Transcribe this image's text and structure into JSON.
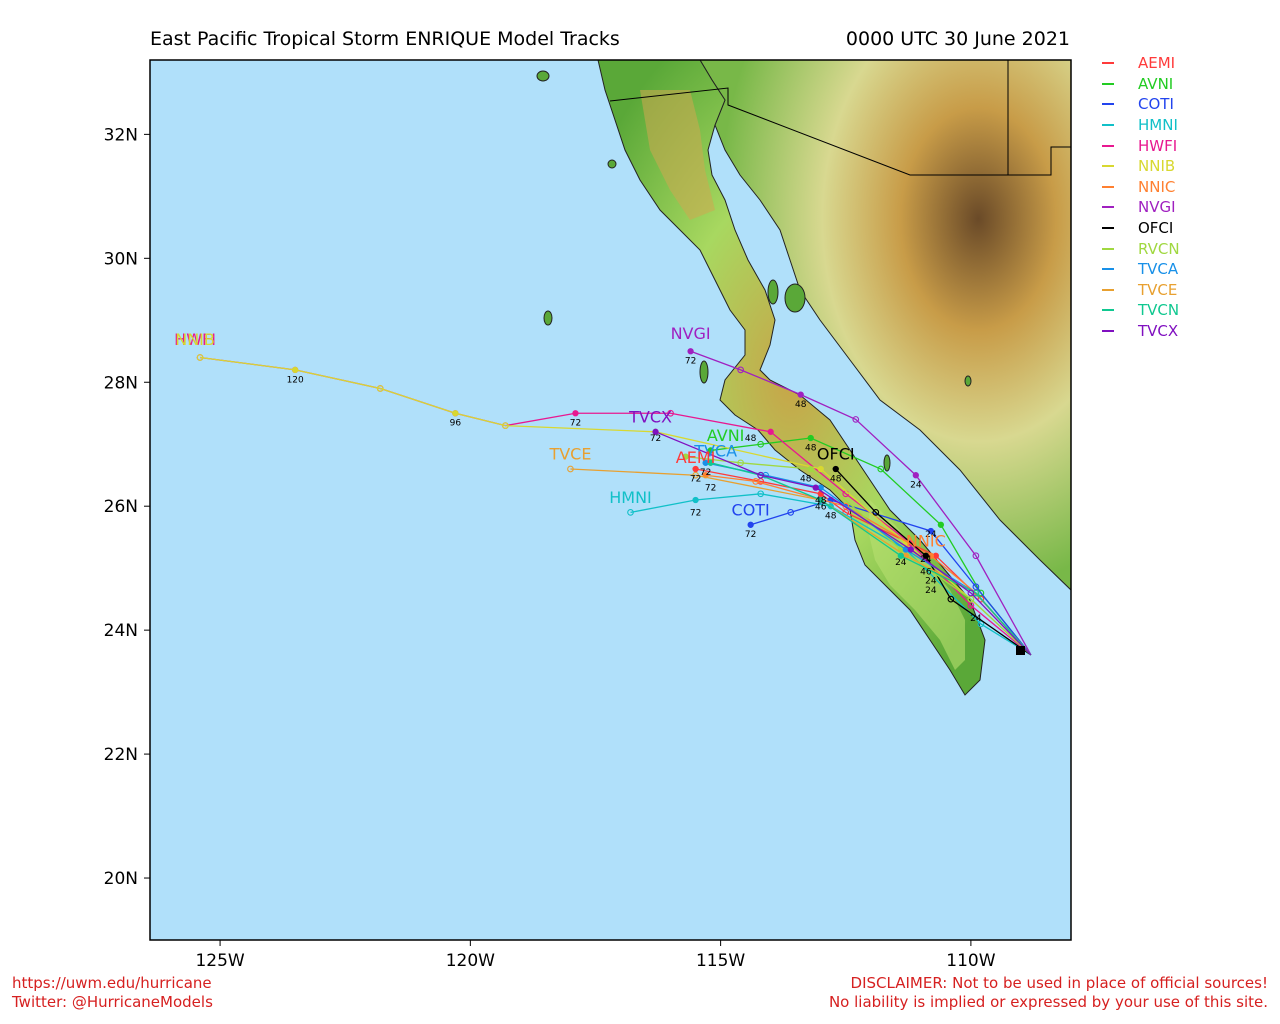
{
  "title": "East Pacific Tropical Storm ENRIQUE Model Tracks",
  "datetime": "0000 UTC 30 June 2021",
  "axes": {
    "lon_ticks": [
      "125W",
      "120W",
      "115W",
      "110W"
    ],
    "lat_ticks": [
      "32N",
      "30N",
      "28N",
      "26N",
      "24N",
      "22N",
      "20N"
    ]
  },
  "legend": [
    {
      "name": "AEMI",
      "color": "#ff3a3a"
    },
    {
      "name": "AVNI",
      "color": "#22cc22"
    },
    {
      "name": "COTI",
      "color": "#2244ee"
    },
    {
      "name": "HMNI",
      "color": "#11c0c8"
    },
    {
      "name": "HWFI",
      "color": "#e81890"
    },
    {
      "name": "NNIB",
      "color": "#d8d830"
    },
    {
      "name": "NNIC",
      "color": "#ff8030"
    },
    {
      "name": "NVGI",
      "color": "#a020c0"
    },
    {
      "name": "OFCI",
      "color": "#000000"
    },
    {
      "name": "RVCN",
      "color": "#a0d840"
    },
    {
      "name": "TVCA",
      "color": "#1890e8"
    },
    {
      "name": "TVCE",
      "color": "#e8a030"
    },
    {
      "name": "TVCN",
      "color": "#10c890"
    },
    {
      "name": "TVCX",
      "color": "#8010c0"
    }
  ],
  "colors": {
    "ocean": "#b0e0fa",
    "land_low": "#4e9a36",
    "land_mid": "#a8d860",
    "land_high": "#c8a040",
    "land_peak": "#70502a"
  },
  "chart_data": {
    "type": "map",
    "storm_start": {
      "lon": -108.8,
      "lat": 23.6
    },
    "tracks": [
      {
        "model": "AEMI",
        "points": [
          {
            "lon": -109.8,
            "lat": 24.5,
            "hour": 12
          },
          {
            "lon": -110.7,
            "lat": 25.2,
            "hour": 24
          },
          {
            "lon": -112.5,
            "lat": 25.9,
            "hour": 36
          },
          {
            "lon": -113.0,
            "lat": 26.2,
            "hour": 48
          },
          {
            "lon": -114.2,
            "lat": 26.4,
            "hour": 60
          },
          {
            "lon": -115.5,
            "lat": 26.6,
            "hour": 72
          }
        ]
      },
      {
        "model": "AVNI",
        "points": [
          {
            "lon": -109.8,
            "lat": 24.6,
            "hour": 12
          },
          {
            "lon": -110.6,
            "lat": 25.7,
            "hour": 24
          },
          {
            "lon": -111.8,
            "lat": 26.6,
            "hour": 36
          },
          {
            "lon": -113.2,
            "lat": 27.1,
            "hour": 48
          },
          {
            "lon": -114.2,
            "lat": 27.0,
            "hour": 60
          },
          {
            "lon": -115.2,
            "lat": 26.9,
            "hour": 72
          }
        ]
      },
      {
        "model": "COTI",
        "points": [
          {
            "lon": -109.9,
            "lat": 24.7,
            "hour": 12
          },
          {
            "lon": -110.8,
            "lat": 25.6,
            "hour": 24
          },
          {
            "lon": -112.8,
            "lat": 26.1,
            "hour": 48
          },
          {
            "lon": -113.6,
            "lat": 25.9,
            "hour": 60
          },
          {
            "lon": -114.4,
            "lat": 25.7,
            "hour": 72
          }
        ]
      },
      {
        "model": "HMNI",
        "points": [
          {
            "lon": -109.8,
            "lat": 24.1,
            "hour": 12
          },
          {
            "lon": -111.3,
            "lat": 25.3,
            "hour": 24
          },
          {
            "lon": -112.8,
            "lat": 26.0,
            "hour": 48
          },
          {
            "lon": -114.2,
            "lat": 26.2,
            "hour": 60
          },
          {
            "lon": -115.5,
            "lat": 26.1,
            "hour": 72
          },
          {
            "lon": -116.8,
            "lat": 25.9,
            "hour": 84
          }
        ]
      },
      {
        "model": "HWFI",
        "points": [
          {
            "lon": -110.0,
            "lat": 24.4,
            "hour": 12
          },
          {
            "lon": -111.2,
            "lat": 25.4,
            "hour": 24
          },
          {
            "lon": -112.5,
            "lat": 26.2,
            "hour": 36
          },
          {
            "lon": -114.0,
            "lat": 27.2,
            "hour": 48
          },
          {
            "lon": -116.0,
            "lat": 27.5,
            "hour": 60
          },
          {
            "lon": -117.9,
            "lat": 27.5,
            "hour": 72
          },
          {
            "lon": -119.3,
            "lat": 27.3,
            "hour": 84
          },
          {
            "lon": -120.3,
            "lat": 27.5,
            "hour": 96
          },
          {
            "lon": -121.8,
            "lat": 27.9,
            "hour": 108
          },
          {
            "lon": -123.5,
            "lat": 28.2,
            "hour": 120
          },
          {
            "lon": -125.4,
            "lat": 28.4,
            "hour": 132
          }
        ]
      },
      {
        "model": "NNIB",
        "points": [
          {
            "lon": -110.0,
            "lat": 24.5,
            "hour": 12
          },
          {
            "lon": -111.3,
            "lat": 25.4,
            "hour": 24
          },
          {
            "lon": -113.0,
            "lat": 26.6,
            "hour": 48
          },
          {
            "lon": -116.3,
            "lat": 27.2,
            "hour": 72
          },
          {
            "lon": -119.3,
            "lat": 27.3,
            "hour": 84
          },
          {
            "lon": -120.3,
            "lat": 27.5,
            "hour": 96
          },
          {
            "lon": -121.8,
            "lat": 27.9,
            "hour": 108
          },
          {
            "lon": -123.5,
            "lat": 28.2,
            "hour": 120
          },
          {
            "lon": -125.4,
            "lat": 28.4,
            "hour": 132
          }
        ]
      },
      {
        "model": "NNIC",
        "points": [
          {
            "lon": -109.9,
            "lat": 24.6,
            "hour": 12
          },
          {
            "lon": -110.8,
            "lat": 25.2,
            "hour": 24
          },
          {
            "lon": -112.5,
            "lat": 26.0,
            "hour": 36
          },
          {
            "lon": -114.3,
            "lat": 26.4,
            "hour": 60
          },
          {
            "lon": -115.3,
            "lat": 26.5,
            "hour": 72
          }
        ]
      },
      {
        "model": "NVGI",
        "points": [
          {
            "lon": -109.9,
            "lat": 25.2,
            "hour": 12
          },
          {
            "lon": -111.1,
            "lat": 26.5,
            "hour": 24
          },
          {
            "lon": -112.3,
            "lat": 27.4,
            "hour": 36
          },
          {
            "lon": -113.4,
            "lat": 27.8,
            "hour": 48
          },
          {
            "lon": -114.6,
            "lat": 28.2,
            "hour": 60
          },
          {
            "lon": -115.6,
            "lat": 28.5,
            "hour": 72
          }
        ]
      },
      {
        "model": "OFCI",
        "points": [
          {
            "lon": -110.4,
            "lat": 24.5,
            "hour": 12
          },
          {
            "lon": -110.9,
            "lat": 25.2,
            "hour": 24
          },
          {
            "lon": -111.9,
            "lat": 25.9,
            "hour": 36
          },
          {
            "lon": -112.7,
            "lat": 26.6,
            "hour": 48
          }
        ]
      },
      {
        "model": "RVCN",
        "points": [
          {
            "lon": -110.0,
            "lat": 24.5,
            "hour": 12
          },
          {
            "lon": -111.4,
            "lat": 25.3,
            "hour": 24
          },
          {
            "lon": -113.2,
            "lat": 26.6,
            "hour": 48
          },
          {
            "lon": -114.6,
            "lat": 26.7,
            "hour": 60
          },
          {
            "lon": -115.7,
            "lat": 26.8,
            "hour": 72
          }
        ]
      },
      {
        "model": "TVCA",
        "points": [
          {
            "lon": -109.9,
            "lat": 24.6,
            "hour": 12
          },
          {
            "lon": -111.3,
            "lat": 25.3,
            "hour": 24
          },
          {
            "lon": -113.0,
            "lat": 26.3,
            "hour": 48
          },
          {
            "lon": -114.1,
            "lat": 26.5,
            "hour": 60
          },
          {
            "lon": -115.3,
            "lat": 26.7,
            "hour": 72
          }
        ]
      },
      {
        "model": "TVCE",
        "points": [
          {
            "lon": -109.9,
            "lat": 24.6,
            "hour": 12
          },
          {
            "lon": -111.3,
            "lat": 25.2,
            "hour": 24
          },
          {
            "lon": -113.0,
            "lat": 26.1,
            "hour": 48
          },
          {
            "lon": -115.5,
            "lat": 26.5,
            "hour": 66
          },
          {
            "lon": -118.0,
            "lat": 26.6,
            "hour": 84
          }
        ]
      },
      {
        "model": "TVCN",
        "points": [
          {
            "lon": -109.9,
            "lat": 24.6,
            "hour": 12
          },
          {
            "lon": -111.4,
            "lat": 25.2,
            "hour": 24
          },
          {
            "lon": -113.0,
            "lat": 26.1,
            "hour": 48
          },
          {
            "lon": -114.2,
            "lat": 26.5,
            "hour": 60
          },
          {
            "lon": -115.2,
            "lat": 26.7,
            "hour": 72
          }
        ]
      },
      {
        "model": "TVCX",
        "points": [
          {
            "lon": -110.0,
            "lat": 24.6,
            "hour": 12
          },
          {
            "lon": -111.2,
            "lat": 25.3,
            "hour": 24
          },
          {
            "lon": -113.1,
            "lat": 26.3,
            "hour": 48
          },
          {
            "lon": -114.2,
            "lat": 26.5,
            "hour": 60
          },
          {
            "lon": -116.3,
            "lat": 27.2,
            "hour": 72
          }
        ]
      }
    ],
    "track_labels": [
      {
        "model": "NVGI",
        "lon": -115.6,
        "lat": 28.7
      },
      {
        "model": "HWFI",
        "lon": -125.5,
        "lat": 28.6
      },
      {
        "model": "NNIB",
        "lon": -125.5,
        "lat": 28.6
      },
      {
        "model": "TVCX",
        "lon": -116.4,
        "lat": 27.35
      },
      {
        "model": "AVNI",
        "lon": -114.9,
        "lat": 27.05
      },
      {
        "model": "TVCA",
        "lon": -115.1,
        "lat": 26.8
      },
      {
        "model": "TVCE",
        "lon": -118.0,
        "lat": 26.75
      },
      {
        "model": "AEMI",
        "lon": -115.5,
        "lat": 26.7
      },
      {
        "model": "OFCI",
        "lon": -112.7,
        "lat": 26.75
      },
      {
        "model": "HMNI",
        "lon": -116.8,
        "lat": 26.05
      },
      {
        "model": "COTI",
        "lon": -114.4,
        "lat": 25.85
      },
      {
        "model": "NNIC",
        "lon": -110.9,
        "lat": 25.35
      }
    ],
    "hour_labels": [
      {
        "text": "120",
        "lon": -123.5,
        "lat": 28.0
      },
      {
        "text": "96",
        "lon": -120.3,
        "lat": 27.3
      },
      {
        "text": "72",
        "lon": -117.9,
        "lat": 27.3
      },
      {
        "text": "72",
        "lon": -115.6,
        "lat": 28.3
      },
      {
        "text": "72",
        "lon": -116.3,
        "lat": 27.05
      },
      {
        "text": "48",
        "lon": -114.4,
        "lat": 27.05
      },
      {
        "text": "48",
        "lon": -113.4,
        "lat": 27.6
      },
      {
        "text": "48",
        "lon": -113.2,
        "lat": 26.9
      },
      {
        "text": "48",
        "lon": -113.3,
        "lat": 26.4
      },
      {
        "text": "48",
        "lon": -112.7,
        "lat": 26.4
      },
      {
        "text": "48",
        "lon": -113.0,
        "lat": 26.05
      },
      {
        "text": "46",
        "lon": -113.0,
        "lat": 25.95
      },
      {
        "text": "48",
        "lon": -112.8,
        "lat": 25.8
      },
      {
        "text": "72",
        "lon": -115.5,
        "lat": 26.4
      },
      {
        "text": "72",
        "lon": -115.3,
        "lat": 26.5
      },
      {
        "text": "72",
        "lon": -115.2,
        "lat": 26.25
      },
      {
        "text": "72",
        "lon": -115.5,
        "lat": 25.85
      },
      {
        "text": "72",
        "lon": -114.4,
        "lat": 25.5
      },
      {
        "text": "24",
        "lon": -111.1,
        "lat": 26.3
      },
      {
        "text": "24",
        "lon": -110.8,
        "lat": 25.5
      },
      {
        "text": "24",
        "lon": -110.9,
        "lat": 25.1
      },
      {
        "text": "24",
        "lon": -111.4,
        "lat": 25.05
      },
      {
        "text": "24",
        "lon": -110.8,
        "lat": 24.75
      },
      {
        "text": "24",
        "lon": -110.8,
        "lat": 24.6
      },
      {
        "text": "24",
        "lon": -109.9,
        "lat": 24.15
      },
      {
        "text": "46",
        "lon": -110.9,
        "lat": 24.9
      }
    ],
    "lon_range": [
      -126.4,
      -108.0
    ],
    "lat_range": [
      19.0,
      33.2
    ]
  },
  "footer": {
    "url": "https://uwm.edu/hurricane",
    "twitter": "Twitter: @HurricaneModels",
    "disclaimer1": "DISCLAIMER: Not to be used in place of official sources!",
    "disclaimer2": "No liability is implied or expressed by your use of this site."
  }
}
